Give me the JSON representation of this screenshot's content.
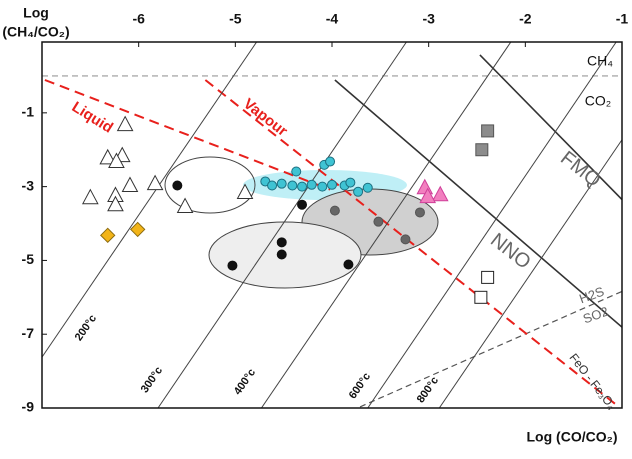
{
  "chart_data": {
    "type": "scatter",
    "y_label_lines": [
      "Log",
      "(CH₄/CO₂)"
    ],
    "x_label": "Log (CO/CO₂)",
    "xlim": [
      -7,
      -1
    ],
    "ylim": [
      -9,
      0.92
    ],
    "xticks": [
      -6,
      -5,
      -4,
      -3,
      -2,
      -1
    ],
    "yticks": [
      -1,
      -3,
      -5,
      -7,
      -9
    ],
    "lines": [
      {
        "color": "#999999",
        "dashed": true,
        "x": [
          -7,
          -1
        ],
        "y": [
          0,
          0
        ]
      },
      {
        "color": "#333333",
        "dashed": false,
        "x": [
          -2.47,
          -1
        ],
        "y": [
          0.57,
          -3.35
        ]
      },
      {
        "color": "#333333",
        "dashed": false,
        "x": [
          -3.97,
          -1
        ],
        "y": [
          -0.11,
          -6.81
        ]
      },
      {
        "color": "#555555",
        "dashed": true,
        "x": [
          -3.71,
          -1
        ],
        "y": [
          -8.97,
          -5.84
        ]
      },
      {
        "color": "#e8201c",
        "dashed": true,
        "x": [
          -6.97,
          -4.02
        ],
        "y": [
          -0.11,
          -3.08
        ]
      },
      {
        "color": "#e8201c",
        "dashed": true,
        "x": [
          -5.31,
          -1.07
        ],
        "y": [
          -0.11,
          -8.89
        ]
      },
      {
        "color": "#444444",
        "dashed": false,
        "x": [
          -7,
          -4.78
        ],
        "y": [
          -7.62,
          0.92
        ]
      },
      {
        "color": "#444444",
        "dashed": false,
        "x": [
          -5.8,
          -3.23
        ],
        "y": [
          -9,
          0.92
        ]
      },
      {
        "color": "#444444",
        "dashed": false,
        "x": [
          -4.73,
          -2.15
        ],
        "y": [
          -9,
          0.92
        ]
      },
      {
        "color": "#444444",
        "dashed": false,
        "x": [
          -3.63,
          -1.06
        ],
        "y": [
          -9,
          0.92
        ]
      },
      {
        "color": "#444444",
        "dashed": false,
        "x": [
          -2.89,
          -1
        ],
        "y": [
          -9,
          -1.73
        ]
      }
    ],
    "annotations": [
      "CH₄",
      "CO₂",
      "FMQ",
      "NNO",
      "H2S",
      "SO2",
      "FeO - Fe₃O₄",
      "Liquid",
      "Vapour",
      "200°c",
      "300°c",
      "400°c",
      "600°c",
      "800°c"
    ],
    "series": [
      {
        "marker": "triangle",
        "color": "#ffffff",
        "edge": "#333333",
        "x": [
          -6.14,
          -6.32,
          -6.17,
          -6.23,
          -6.09,
          -6.24,
          -6.24,
          -6.5,
          -5.83,
          -5.52,
          -4.9
        ],
        "y": [
          -1.32,
          -2.22,
          -2.16,
          -2.32,
          -2.97,
          -3.24,
          -3.49,
          -3.3,
          -2.92,
          -3.54,
          -3.16
        ]
      },
      {
        "marker": "diamond",
        "color": "#f2b418",
        "edge": "#8a6a10",
        "x": [
          -6.32,
          -6.01
        ],
        "y": [
          -4.32,
          -4.16
        ]
      },
      {
        "marker": "circle",
        "color": "#111111",
        "edge": "#111111",
        "x": [
          -5.6,
          -4.31,
          -4.52,
          -4.52,
          -5.03,
          -3.83
        ],
        "y": [
          -2.97,
          -3.49,
          -4.51,
          -4.84,
          -5.14,
          -5.11
        ]
      },
      {
        "marker": "circle",
        "color": "#666666",
        "edge": "#555555",
        "x": [
          -3.97,
          -3.52,
          -3.24,
          -3.09
        ],
        "y": [
          -3.65,
          -3.95,
          -4.43,
          -3.7
        ]
      },
      {
        "marker": "circle",
        "color": "#3fc3d3",
        "edge": "#1d6f80",
        "x": [
          -4.69,
          -4.62,
          -4.52,
          -4.41,
          -4.31,
          -4.21,
          -4.1,
          -4.08,
          -4.02,
          -4.0,
          -3.87,
          -3.73,
          -3.63,
          -4.37,
          -3.81
        ],
        "y": [
          -2.86,
          -2.97,
          -2.92,
          -2.97,
          -3.0,
          -2.95,
          -3.0,
          -2.41,
          -2.32,
          -2.95,
          -2.97,
          -3.14,
          -3.03,
          -2.59,
          -2.89
        ]
      },
      {
        "marker": "triangle",
        "color": "#f27fbf",
        "edge": "#d0409a",
        "x": [
          -3.04,
          -2.88,
          -3.01
        ],
        "y": [
          -3.03,
          -3.22,
          -3.27
        ]
      },
      {
        "marker": "square",
        "color": "#8c8c8c",
        "edge": "#555555",
        "x": [
          -2.39,
          -2.45
        ],
        "y": [
          -1.49,
          -2.0
        ]
      },
      {
        "marker": "square",
        "color": "#ffffff",
        "edge": "#222222",
        "x": [
          -2.39,
          -2.46
        ],
        "y": [
          -5.46,
          -6.0
        ]
      }
    ]
  }
}
